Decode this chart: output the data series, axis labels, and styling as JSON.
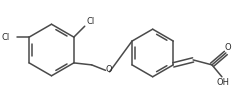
{
  "background_color": "#ffffff",
  "line_color": "#4a4a4a",
  "line_width": 1.1,
  "text_color": "#2a2a2a",
  "font_size": 6.0,
  "figsize": [
    2.34,
    1.01
  ],
  "dpi": 100,
  "xlim": [
    0,
    234
  ],
  "ylim": [
    0,
    101
  ]
}
